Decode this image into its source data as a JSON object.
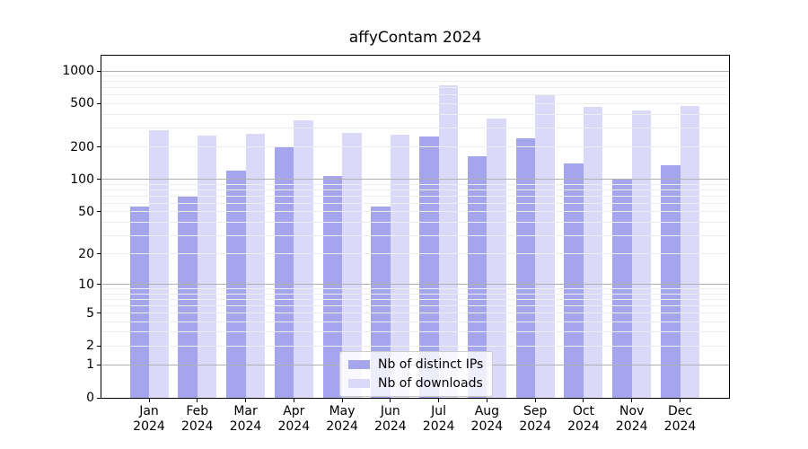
{
  "figure": {
    "title": "affyContam 2024"
  },
  "chart_data": {
    "type": "bar",
    "title": "affyContam 2024",
    "categories": [
      "Jan",
      "Feb",
      "Mar",
      "Apr",
      "May",
      "Jun",
      "Jul",
      "Aug",
      "Sep",
      "Oct",
      "Nov",
      "Dec"
    ],
    "category_year": "2024",
    "series": [
      {
        "name": "Nb of distinct IPs",
        "color": "#a5a5ee",
        "values": [
          56,
          70,
          120,
          204,
          108,
          56,
          250,
          163,
          240,
          140,
          100,
          135
        ]
      },
      {
        "name": "Nb of downloads",
        "color": "#dadaf8",
        "values": [
          285,
          253,
          265,
          350,
          270,
          257,
          735,
          365,
          615,
          470,
          430,
          480
        ]
      }
    ],
    "xlabel": "",
    "ylabel": "",
    "y_scale": "log1p",
    "y_ticks": [
      0,
      1,
      2,
      5,
      10,
      20,
      50,
      100,
      200,
      500,
      1000
    ],
    "ylim_top_tick": 1000,
    "grid": {
      "major_lines": [
        1,
        10,
        100,
        1000
      ],
      "minor_decades": [
        1,
        10,
        100
      ],
      "major_color": "#b0b0b0",
      "minor_color": "#ededed"
    },
    "legend": {
      "position": "lower center",
      "entries": [
        "Nb of distinct IPs",
        "Nb of downloads"
      ]
    }
  }
}
